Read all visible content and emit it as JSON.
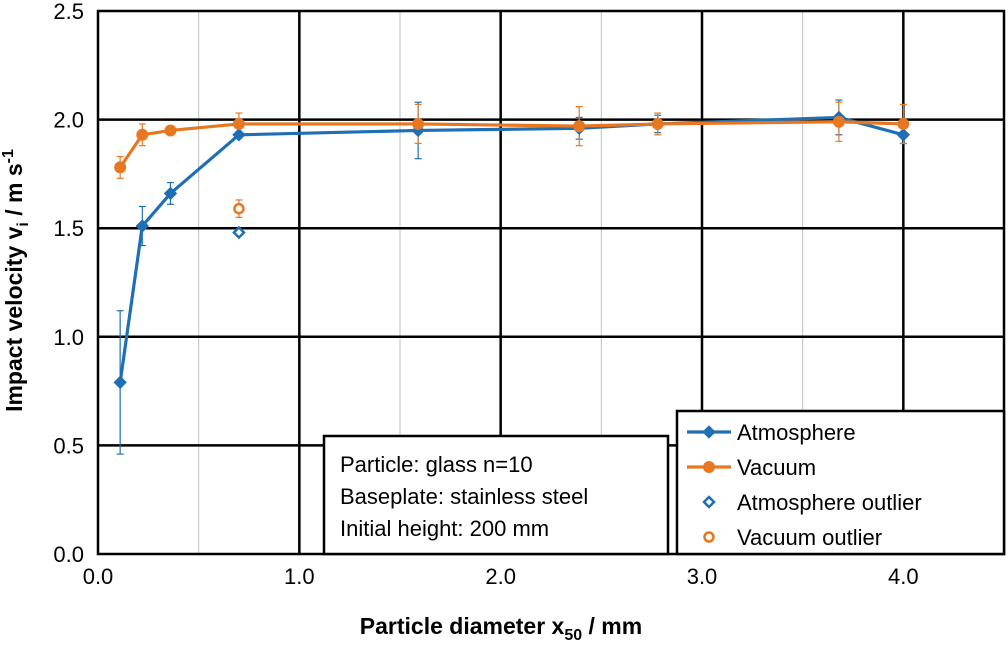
{
  "chart_data": {
    "type": "line",
    "xlabel": {
      "main": "Particle diameter x",
      "sub": "50",
      "tail": " / mm"
    },
    "ylabel": {
      "main": "Impact velocity v",
      "sub": "i",
      "mid": " / m s",
      "sup": "-1"
    },
    "xlim": [
      0,
      4.5
    ],
    "ylim": [
      0,
      2.5
    ],
    "x_ticks": [
      "0.0",
      "1.0",
      "2.0",
      "3.0",
      "4.0"
    ],
    "y_ticks": [
      "0.0",
      "0.5",
      "1.0",
      "1.5",
      "2.0",
      "2.5"
    ],
    "major_grid_x": [
      1.0,
      2.0,
      3.0,
      4.0
    ],
    "major_grid_y": [
      0.5,
      1.0,
      1.5,
      2.0
    ],
    "minor_grid_x": [
      0.5,
      1.5,
      2.5,
      3.5
    ],
    "grid": true,
    "series": [
      {
        "name": "Atmosphere",
        "color": "#1f6fb4",
        "marker": "diamond-filled",
        "line": true,
        "points": [
          {
            "x": 0.11,
            "y": 0.79,
            "err": 0.33
          },
          {
            "x": 0.22,
            "y": 1.51,
            "err": 0.09
          },
          {
            "x": 0.36,
            "y": 1.66,
            "err": 0.05
          },
          {
            "x": 0.7,
            "y": 1.93,
            "err": 0.0
          },
          {
            "x": 1.59,
            "y": 1.95,
            "err": 0.13
          },
          {
            "x": 2.39,
            "y": 1.96,
            "err": 0.05
          },
          {
            "x": 2.78,
            "y": 1.98,
            "err": 0.04
          },
          {
            "x": 3.68,
            "y": 2.01,
            "err": 0.08
          },
          {
            "x": 4.0,
            "y": 1.93,
            "err": 0.04
          }
        ]
      },
      {
        "name": "Vacuum",
        "color": "#e87722",
        "marker": "circle-filled",
        "line": true,
        "points": [
          {
            "x": 0.11,
            "y": 1.78,
            "err": 0.05
          },
          {
            "x": 0.22,
            "y": 1.93,
            "err": 0.05
          },
          {
            "x": 0.36,
            "y": 1.95,
            "err": 0.02
          },
          {
            "x": 0.7,
            "y": 1.98,
            "err": 0.05
          },
          {
            "x": 1.59,
            "y": 1.98,
            "err": 0.09
          },
          {
            "x": 2.39,
            "y": 1.97,
            "err": 0.09
          },
          {
            "x": 2.78,
            "y": 1.98,
            "err": 0.05
          },
          {
            "x": 3.68,
            "y": 1.99,
            "err": 0.09
          },
          {
            "x": 4.0,
            "y": 1.98,
            "err": 0.09
          }
        ]
      },
      {
        "name": "Atmosphere outlier",
        "color": "#1f6fb4",
        "marker": "diamond-open",
        "line": false,
        "points": [
          {
            "x": 0.7,
            "y": 1.48,
            "err": 0.0
          }
        ]
      },
      {
        "name": "Vacuum outlier",
        "color": "#e87722",
        "marker": "circle-open",
        "line": false,
        "points": [
          {
            "x": 0.7,
            "y": 1.59,
            "err": 0.04
          }
        ]
      }
    ],
    "annotation": [
      "Particle: glass n=10",
      "Baseplate: stainless steel",
      "Initial height: 200 mm"
    ],
    "legend_position": "bottom-right"
  }
}
